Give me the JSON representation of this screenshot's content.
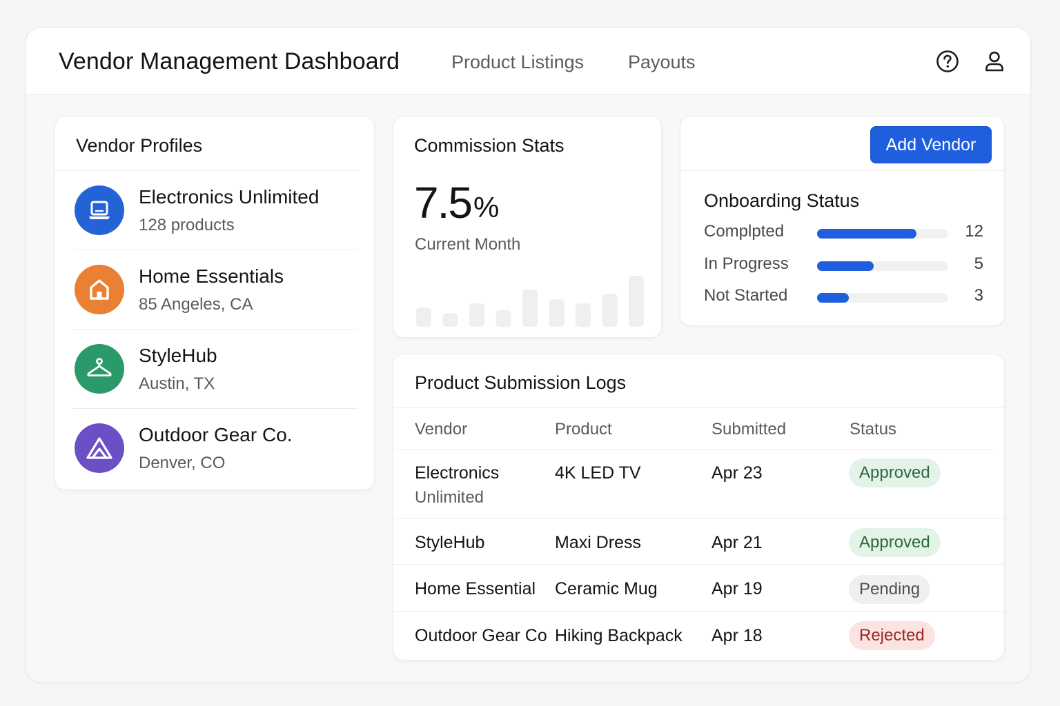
{
  "header": {
    "title": "Vendor Management Dashboard",
    "nav": [
      "Product Listings",
      "Payouts"
    ],
    "icons": [
      "help-icon",
      "user-icon"
    ]
  },
  "vendor_profiles": {
    "title": "Vendor Profiles",
    "items": [
      {
        "name": "Electronics Unlimited",
        "sub": "128 products",
        "icon": "laptop-icon",
        "color": "#2463d6"
      },
      {
        "name": "Home Essentials",
        "sub": "85 Angeles, CA",
        "icon": "home-icon",
        "color": "#ea8033"
      },
      {
        "name": "StyleHub",
        "sub": "Austin, TX",
        "icon": "hanger-icon",
        "color": "#2a9a6a"
      },
      {
        "name": "Outdoor Gear Co.",
        "sub": "Denver, CO",
        "icon": "mountain-icon",
        "color": "#6b4fc4"
      }
    ]
  },
  "commission": {
    "title": "Commission Stats",
    "value": "7.5",
    "unit": "%",
    "period": "Current Month",
    "bars": [
      28,
      20,
      34,
      24,
      54,
      40,
      34,
      48,
      74
    ]
  },
  "onboarding": {
    "add_button": "Add Vendor",
    "title": "Onboarding Status",
    "rows": [
      {
        "label": "Complpted",
        "value": "12",
        "fraction": 0.76
      },
      {
        "label": "In Progress",
        "value": "5",
        "fraction": 0.43
      },
      {
        "label": "Not Started",
        "value": "3",
        "fraction": 0.24
      }
    ]
  },
  "logs": {
    "title": "Product Submission Logs",
    "columns": [
      "Vendor",
      "Product",
      "Submitted",
      "Status"
    ],
    "rows": [
      {
        "vendor": "Electronics",
        "vendor2": "Unlimited",
        "product": "4K LED TV",
        "date": "Apr 23",
        "status": "Approved",
        "kind": "approved"
      },
      {
        "vendor": "StyleHub",
        "vendor2": "",
        "product": "Maxi Dress",
        "date": "Apr 21",
        "status": "Approved",
        "kind": "approved"
      },
      {
        "vendor": "Home Essential",
        "vendor2": "",
        "product": "Ceramic Mug",
        "date": "Apr 19",
        "status": "Pending",
        "kind": "pending"
      },
      {
        "vendor": "Outdoor Gear Co",
        "vendor2": "",
        "product": "Hiking Backpack",
        "date": "Apr 18",
        "status": "Rejected",
        "kind": "rejected"
      }
    ]
  },
  "colors": {
    "accent": "#1f5fde",
    "approved": "#2e6a3e",
    "pending": "#505050",
    "rejected": "#9b2720"
  }
}
